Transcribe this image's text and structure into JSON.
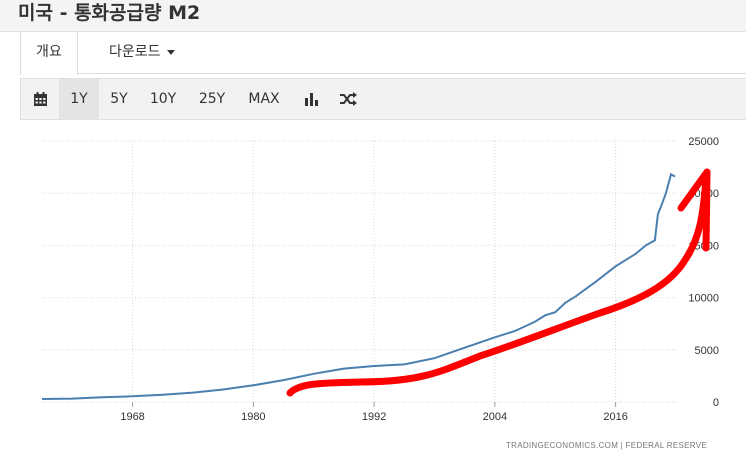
{
  "page": {
    "title": "미국 - 통화공급량 M2"
  },
  "tabs": [
    {
      "label": "개요",
      "active": true
    },
    {
      "label": "다운로드",
      "dropdown": true
    }
  ],
  "toolbar": {
    "calendar_icon": "calendar-icon",
    "ranges": [
      "1Y",
      "5Y",
      "10Y",
      "25Y",
      "MAX"
    ],
    "selected_range": "1Y",
    "chart_type_icon": "bar-chart-icon",
    "compare_icon": "shuffle-icon"
  },
  "chart_data": {
    "type": "line",
    "x_ticks": [
      "1968",
      "1980",
      "1992",
      "2004",
      "2016"
    ],
    "y_ticks": [
      "25000",
      "20000",
      "15000",
      "10000",
      "5000",
      "0"
    ],
    "ylim": [
      0,
      25000
    ],
    "xlim": [
      1959,
      2022
    ],
    "y_axis_position": "right",
    "grid": true,
    "series": [
      {
        "color": "#4a7fb0",
        "x": [
          1959,
          1962,
          1965,
          1968,
          1971,
          1974,
          1977,
          1980,
          1983,
          1986,
          1989,
          1992,
          1995,
          1998,
          2001,
          2004,
          2006,
          2008,
          2009,
          2010,
          2011,
          2012,
          2014,
          2016,
          2018,
          2019,
          2019.9,
          2020.2,
          2020.5,
          2021,
          2021.5,
          2021.9
        ],
        "y": [
          290,
          330,
          450,
          550,
          700,
          900,
          1200,
          1600,
          2100,
          2700,
          3200,
          3450,
          3600,
          4200,
          5200,
          6200,
          6800,
          7700,
          8300,
          8600,
          9500,
          10100,
          11500,
          13000,
          14200,
          15000,
          15500,
          18000,
          18700,
          20000,
          21800,
          21600
        ]
      }
    ],
    "annotation": {
      "type": "hand-drawn arrow",
      "color": "#ff0000"
    },
    "source": "TRADINGECONOMICS.COM  |  FEDERAL RESERVE"
  }
}
